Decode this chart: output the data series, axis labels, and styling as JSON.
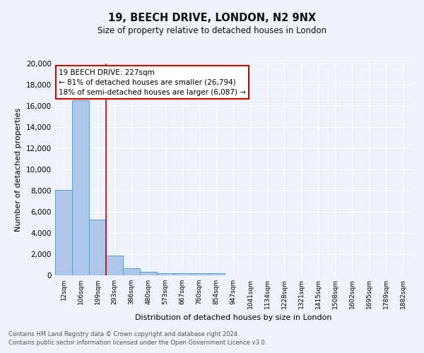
{
  "title": "19, BEECH DRIVE, LONDON, N2 9NX",
  "subtitle": "Size of property relative to detached houses in London",
  "xlabel": "Distribution of detached houses by size in London",
  "ylabel": "Number of detached properties",
  "footnote1": "Contains HM Land Registry data © Crown copyright and database right 2024.",
  "footnote2": "Contains public sector information licensed under the Open Government Licence v3.0.",
  "annotation_line1": "19 BEECH DRIVE: 227sqm",
  "annotation_line2": "← 81% of detached houses are smaller (26,794)",
  "annotation_line3": "18% of semi-detached houses are larger (6,087) →",
  "bar_labels": [
    "12sqm",
    "106sqm",
    "199sqm",
    "293sqm",
    "386sqm",
    "480sqm",
    "573sqm",
    "667sqm",
    "760sqm",
    "854sqm",
    "947sqm",
    "1041sqm",
    "1134sqm",
    "1228sqm",
    "1321sqm",
    "1415sqm",
    "1508sqm",
    "1602sqm",
    "1695sqm",
    "1789sqm",
    "1882sqm"
  ],
  "bar_values": [
    8100,
    16500,
    5300,
    1850,
    700,
    320,
    230,
    200,
    200,
    170,
    0,
    0,
    0,
    0,
    0,
    0,
    0,
    0,
    0,
    0,
    0
  ],
  "bar_color": "#aec6e8",
  "bar_edge_color": "#5a9fd4",
  "red_line_x": 2.5,
  "ylim": [
    0,
    20000
  ],
  "yticks": [
    0,
    2000,
    4000,
    6000,
    8000,
    10000,
    12000,
    14000,
    16000,
    18000,
    20000
  ],
  "background_color": "#eef2fa",
  "grid_color": "#ffffff",
  "red_line_color": "#cc0000",
  "annotation_box_color": "#ffffff",
  "annotation_box_edge": "#cc0000"
}
